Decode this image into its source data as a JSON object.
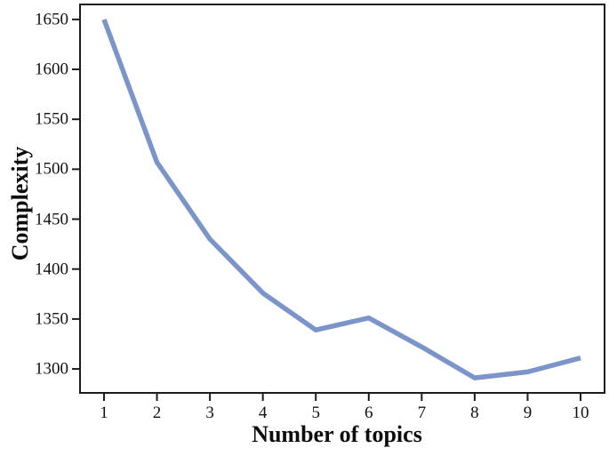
{
  "chart_data": {
    "type": "line",
    "title": "",
    "xlabel": "Number of topics",
    "ylabel": "Complexity",
    "x": [
      1,
      2,
      3,
      4,
      5,
      6,
      7,
      8,
      9,
      10
    ],
    "y": [
      1650,
      1507,
      1430,
      1376,
      1339,
      1351,
      1322,
      1291,
      1297,
      1311
    ],
    "series_name": "Complexity",
    "x_ticks": [
      1,
      2,
      3,
      4,
      5,
      6,
      7,
      8,
      9,
      10
    ],
    "y_ticks": [
      1300,
      1350,
      1400,
      1450,
      1500,
      1550,
      1600,
      1650
    ],
    "xlim": [
      0.547,
      10.453
    ],
    "ylim": [
      1276,
      1665
    ],
    "grid": false,
    "legend_position": "none",
    "line_color": "#7b94ca",
    "axis_color": "#1c1c1c",
    "text_color": "#111111",
    "background_color": "#ffffff"
  }
}
